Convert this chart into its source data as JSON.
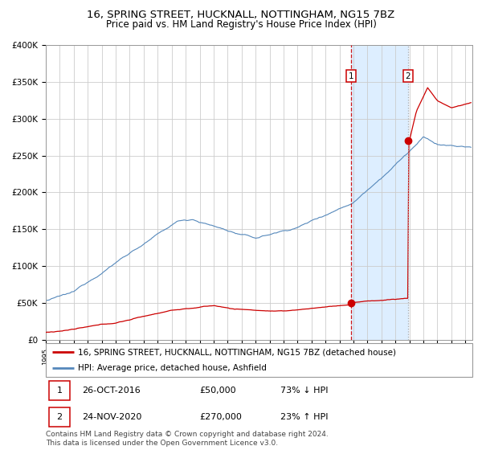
{
  "title": "16, SPRING STREET, HUCKNALL, NOTTINGHAM, NG15 7BZ",
  "subtitle": "Price paid vs. HM Land Registry's House Price Index (HPI)",
  "ylim": [
    0,
    400000
  ],
  "yticks": [
    0,
    50000,
    100000,
    150000,
    200000,
    250000,
    300000,
    350000,
    400000
  ],
  "ytick_labels": [
    "£0",
    "£50K",
    "£100K",
    "£150K",
    "£200K",
    "£250K",
    "£300K",
    "£350K",
    "£400K"
  ],
  "xlim_start": 1995.0,
  "xlim_end": 2025.5,
  "red_line_color": "#cc0000",
  "blue_line_color": "#5588bb",
  "shade_color": "#ddeeff",
  "vline1_color": "#cc0000",
  "vline1_style": "--",
  "vline2_color": "#aaaaaa",
  "vline2_style": ":",
  "marker_color": "#cc0000",
  "legend_entry1": "16, SPRING STREET, HUCKNALL, NOTTINGHAM, NG15 7BZ (detached house)",
  "legend_entry2": "HPI: Average price, detached house, Ashfield",
  "sale1_date": 2016.82,
  "sale1_price": 50000,
  "sale2_date": 2020.9,
  "sale2_price": 270000,
  "table_row1": [
    "1",
    "26-OCT-2016",
    "£50,000",
    "73% ↓ HPI"
  ],
  "table_row2": [
    "2",
    "24-NOV-2020",
    "£270,000",
    "23% ↑ HPI"
  ],
  "footnote": "Contains HM Land Registry data © Crown copyright and database right 2024.\nThis data is licensed under the Open Government Licence v3.0.",
  "title_fontsize": 9.5,
  "subtitle_fontsize": 8.5,
  "axis_fontsize": 7.5,
  "legend_fontsize": 8
}
